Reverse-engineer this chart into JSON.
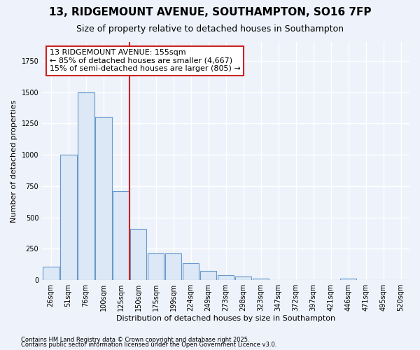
{
  "title1": "13, RIDGEMOUNT AVENUE, SOUTHAMPTON, SO16 7FP",
  "title2": "Size of property relative to detached houses in Southampton",
  "xlabel": "Distribution of detached houses by size in Southampton",
  "ylabel": "Number of detached properties",
  "categories": [
    "26sqm",
    "51sqm",
    "76sqm",
    "100sqm",
    "125sqm",
    "150sqm",
    "175sqm",
    "199sqm",
    "224sqm",
    "249sqm",
    "273sqm",
    "298sqm",
    "323sqm",
    "347sqm",
    "372sqm",
    "397sqm",
    "421sqm",
    "446sqm",
    "471sqm",
    "495sqm",
    "520sqm"
  ],
  "values": [
    110,
    1000,
    1500,
    1300,
    710,
    410,
    215,
    215,
    135,
    75,
    40,
    30,
    15,
    0,
    0,
    0,
    0,
    15,
    0,
    0,
    0
  ],
  "bar_color": "#dce8f5",
  "bar_edge_color": "#6699cc",
  "background_color": "#eef2fa",
  "grid_color": "#ffffff",
  "vline_x_index": 5,
  "annotation_line1": "13 RIDGEMOUNT AVENUE: 155sqm",
  "annotation_line2": "← 85% of detached houses are smaller (4,667)",
  "annotation_line3": "15% of semi-detached houses are larger (805) →",
  "vline_color": "#cc2222",
  "annotation_box_facecolor": "#ffffff",
  "annotation_box_edgecolor": "#cc2222",
  "footnote1": "Contains HM Land Registry data © Crown copyright and database right 2025.",
  "footnote2": "Contains public sector information licensed under the Open Government Licence v3.0.",
  "ylim": [
    0,
    1900
  ],
  "title1_fontsize": 11,
  "title2_fontsize": 9,
  "axis_fontsize": 8,
  "tick_fontsize": 7,
  "annot_fontsize": 8
}
